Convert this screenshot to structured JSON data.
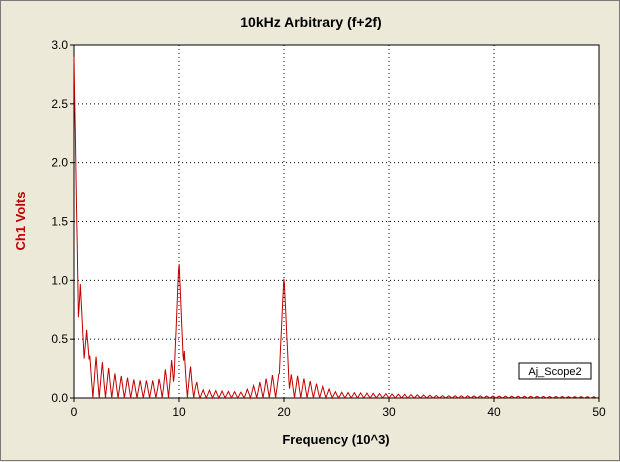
{
  "chart_data": {
    "type": "line",
    "title": "10kHz Arbitrary (f+2f)",
    "xlabel": "Frequency (10^3)",
    "ylabel": "Ch1 Volts",
    "xlim": [
      0,
      50
    ],
    "ylim": [
      0,
      3.0
    ],
    "x_ticks": [
      "0",
      "10",
      "20",
      "30",
      "40",
      "50"
    ],
    "y_ticks": [
      "0.0",
      "0.5",
      "1.0",
      "1.5",
      "2.0",
      "2.5",
      "3.0"
    ],
    "grid": true,
    "legend_position": "bottom-right",
    "series": [
      {
        "name": "Aj_Scope2",
        "color": "#c00000",
        "peaks": [
          {
            "x": 0.0,
            "y": 2.9
          },
          {
            "x": 0.6,
            "y": 0.97
          },
          {
            "x": 1.2,
            "y": 0.58
          },
          {
            "x": 10.0,
            "y": 1.18
          },
          {
            "x": 20.0,
            "y": 1.05
          }
        ],
        "sidelobe_envelope": [
          {
            "x": 2,
            "y": 0.36
          },
          {
            "x": 4,
            "y": 0.2
          },
          {
            "x": 6,
            "y": 0.15
          },
          {
            "x": 8,
            "y": 0.15
          },
          {
            "x": 9.5,
            "y": 0.35
          },
          {
            "x": 10.5,
            "y": 0.4
          },
          {
            "x": 12,
            "y": 0.07
          },
          {
            "x": 16,
            "y": 0.05
          },
          {
            "x": 19,
            "y": 0.2
          },
          {
            "x": 21,
            "y": 0.2
          },
          {
            "x": 25,
            "y": 0.05
          },
          {
            "x": 35,
            "y": 0.02
          },
          {
            "x": 50,
            "y": 0.01
          }
        ]
      }
    ]
  }
}
